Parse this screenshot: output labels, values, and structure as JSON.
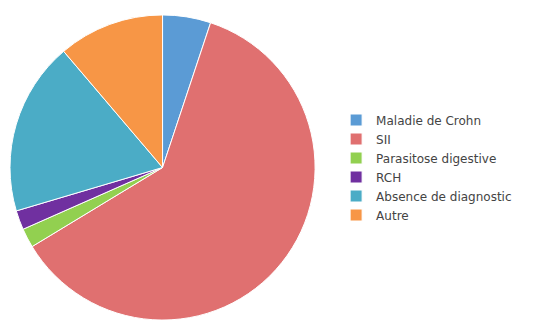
{
  "chart_data": {
    "type": "pie",
    "categories": [
      "Maladie de Crohn",
      "SII",
      "Parasitose digestive",
      "RCH",
      "Absence de diagnostic",
      "Autre"
    ],
    "values": [
      5,
      60,
      2,
      2,
      18,
      11
    ],
    "colors": [
      "#5B9BD5",
      "#E07070",
      "#92D050",
      "#7030A0",
      "#4BACC6",
      "#F79646"
    ],
    "legend": "right"
  }
}
